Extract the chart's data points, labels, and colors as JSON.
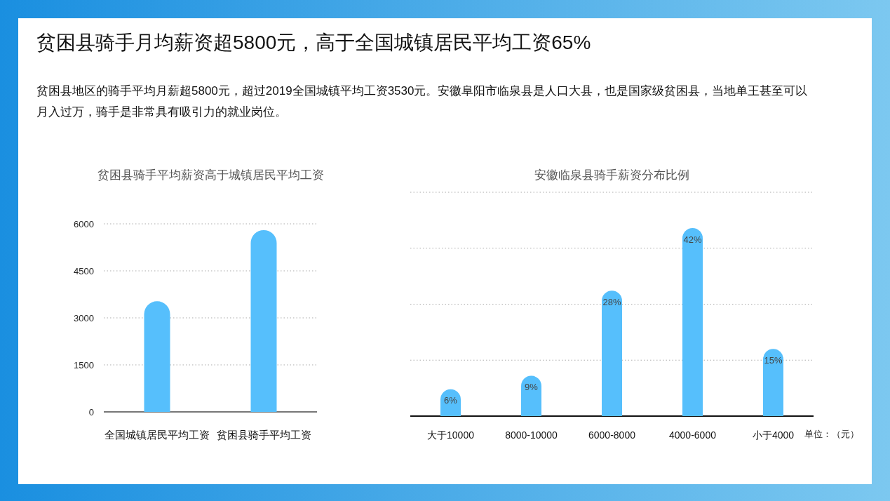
{
  "chart_data": [
    {
      "type": "other",
      "title": "贫困县骑手月均薪资超5800元，高于全国城镇居民平均工资65%",
      "subtitle": "贫困县地区的骑手平均月薪超5800元，超过2019全国城镇平均工资3530元。安徽阜阳市临泉县是人口大县，也是国家级贫困县，当地单王甚至可以月入过万，骑手是非常具有吸引力的就业岗位。"
    },
    {
      "type": "bar",
      "title": "贫困县骑手平均薪资高于城镇居民平均工资",
      "categories": [
        "全国城镇居民平均工资",
        "贫困县骑手平均工资"
      ],
      "values": [
        3530,
        5800
      ],
      "color": "#56bffc",
      "ylim": [
        0,
        6000
      ],
      "yticks": [
        0,
        1500,
        3000,
        4500,
        6000
      ],
      "grid": "y"
    },
    {
      "type": "bar",
      "title": "安徽临泉县骑手薪资分布比例",
      "categories": [
        "大于10000",
        "8000-10000",
        "6000-8000",
        "4000-6000",
        "小于4000"
      ],
      "values": [
        6,
        9,
        28,
        42,
        15
      ],
      "value_labels": [
        "6%",
        "9%",
        "28%",
        "42%",
        "15%"
      ],
      "color": "#56bffc",
      "ylim": [
        0,
        50
      ],
      "yticks": [
        {
          "value": 12.5,
          "label": null
        },
        {
          "value": 25,
          "label": null
        },
        {
          "value": 37.5,
          "label": null
        },
        {
          "value": 50,
          "label": null
        }
      ],
      "grid": "y",
      "tick_labels": "x",
      "annotations": [
        "单位：（元）"
      ]
    }
  ]
}
